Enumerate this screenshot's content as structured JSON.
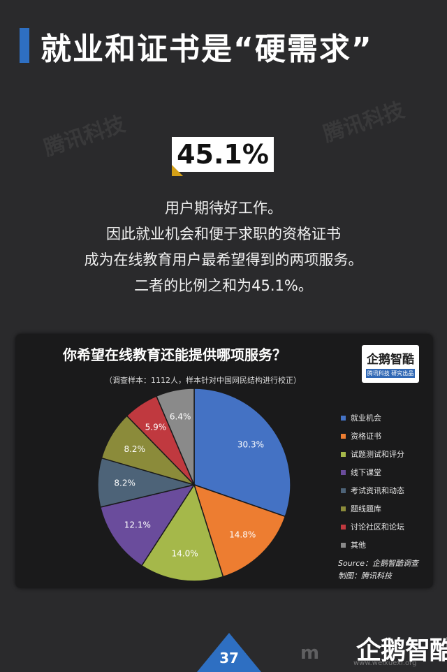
{
  "header": {
    "title": "就业和证书是“硬需求”"
  },
  "watermarks": {
    "text": "腾讯科技"
  },
  "highlight": {
    "stat": "45.1%"
  },
  "description": {
    "lines": [
      "用户期待好工作。",
      "因此就业机会和便于求职的资格证书",
      "成为在线教育用户最希望得到的两项服务。",
      "二者的比例之和为45.1%。"
    ]
  },
  "chart_data": {
    "type": "pie",
    "title": "你希望在线教育还能提供哪项服务？",
    "note": "（调查样本：1112人，样本针对中国网民结构进行校正）",
    "categories": [
      "就业机会",
      "资格证书",
      "试题测试和评分",
      "线下课堂",
      "考试资讯和动态",
      "题线题库",
      "讨论社区和论坛",
      "其他"
    ],
    "values": [
      30.3,
      14.8,
      14.0,
      12.1,
      8.2,
      8.2,
      5.9,
      6.4
    ],
    "labels": [
      "30.3%",
      "14.8%",
      "14.0%",
      "12.1%",
      "8.2%",
      "8.2%",
      "5.9%",
      "6.4%"
    ],
    "colors": [
      "#4472c4",
      "#ed7d31",
      "#a5b84a",
      "#6a4c9c",
      "#4d6378",
      "#8b8b3a",
      "#c0393f",
      "#8a8a8a"
    ],
    "legend_position": "right",
    "source": "Source：企鹅智酷调查",
    "credit": "制图：腾讯科技"
  },
  "logo": {
    "main": "企鹅智酷",
    "sub": "腾讯科技 研究出品"
  },
  "footer": {
    "page_number": "37",
    "brand": "企鹅智酷",
    "site_mark": "m",
    "site_url": "www.weixuexi.org"
  }
}
